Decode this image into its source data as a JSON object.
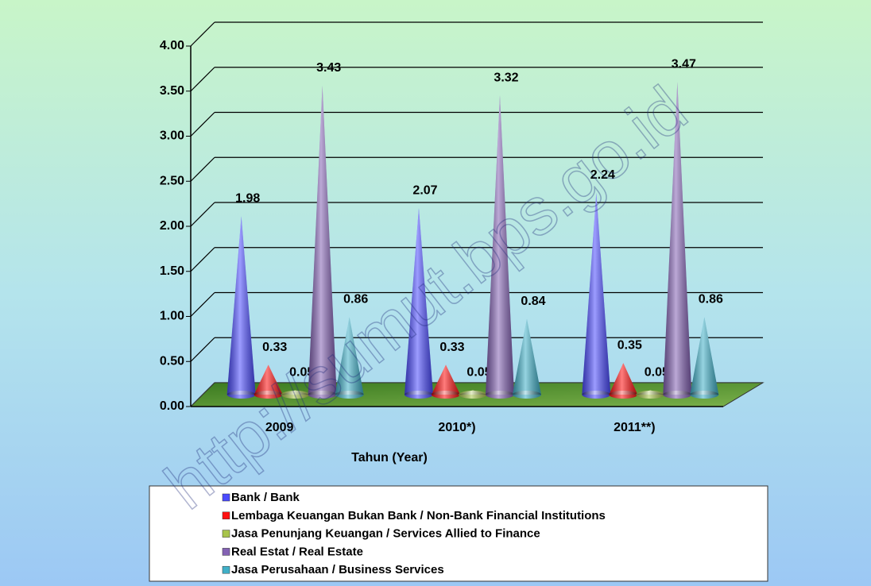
{
  "chart_data": {
    "type": "cone3d",
    "x_label": "Tahun (Year)",
    "watermark": "http://sumut.bps.go.id",
    "categories": [
      "2009",
      "2010*)",
      "2011**)"
    ],
    "series": [
      {
        "name": "Bank / Bank",
        "color": "#4b4bff",
        "values": [
          1.98,
          2.07,
          2.24
        ]
      },
      {
        "name": "Lembaga Keuangan Bukan Bank / Non-Bank Financial Institutions",
        "color": "#ff1010",
        "values": [
          0.33,
          0.33,
          0.35
        ]
      },
      {
        "name": "Jasa Penunjang Keuangan / Services Allied to Finance",
        "color": "#a8c44b",
        "values": [
          0.05,
          0.05,
          0.05
        ]
      },
      {
        "name": "Real Estat / Real Estate",
        "color": "#8462b4",
        "values": [
          3.43,
          3.32,
          3.47
        ]
      },
      {
        "name": "Jasa Perusahaan / Business Services",
        "color": "#40b0c8",
        "values": [
          0.86,
          0.84,
          0.86
        ]
      }
    ],
    "ylim": [
      0,
      4
    ],
    "yticks": [
      {
        "value": 0,
        "label": "0.00"
      },
      {
        "value": 0.5,
        "label": "0.50"
      },
      {
        "value": 1,
        "label": "1.00"
      },
      {
        "value": 1.5,
        "label": "1.50"
      },
      {
        "value": 2,
        "label": "2.00"
      },
      {
        "value": 2.5,
        "label": "2.50"
      },
      {
        "value": 3,
        "label": "3.00"
      },
      {
        "value": 3.5,
        "label": "3.50"
      },
      {
        "value": 4,
        "label": "4.00"
      }
    ],
    "grid": true,
    "legend": "bottom"
  }
}
